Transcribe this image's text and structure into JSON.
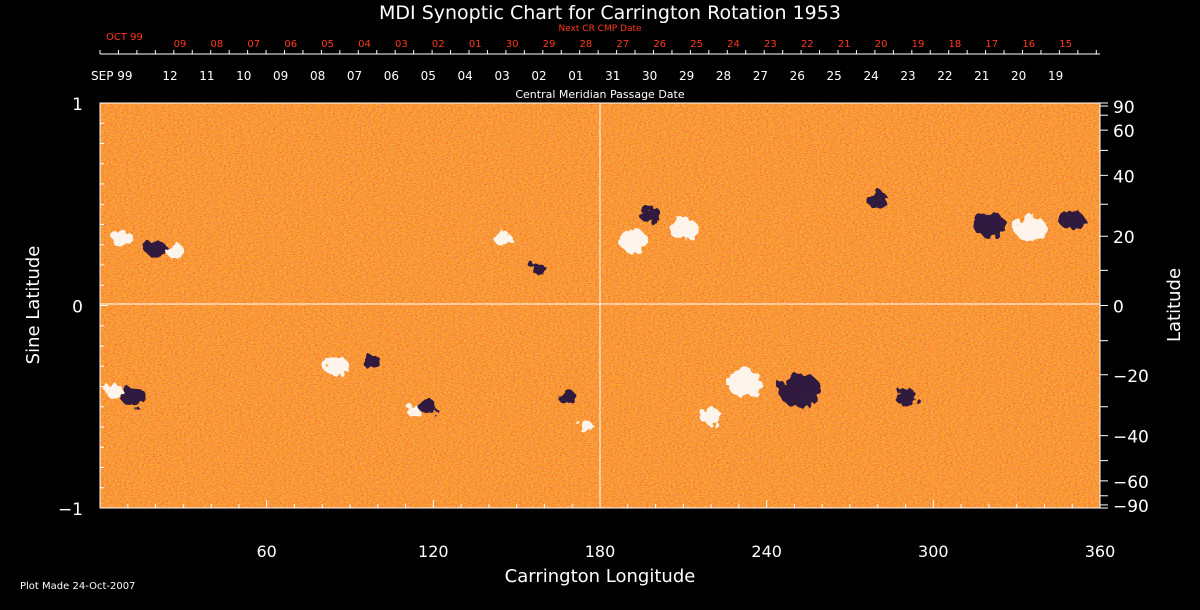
{
  "chart_data": {
    "type": "heatmap",
    "title": "MDI Synoptic Chart for Carrington Rotation 1953",
    "xlabel": "Carrington Longitude",
    "ylabel_left": "Sine Latitude",
    "ylabel_right": "Latitude",
    "xlim": [
      0,
      360
    ],
    "ylim_sine": [
      -1,
      1
    ],
    "x_ticks": [
      60,
      120,
      180,
      240,
      300,
      360
    ],
    "y_left_ticks": [
      {
        "v": 1,
        "label": "1"
      },
      {
        "v": 0,
        "label": "0"
      },
      {
        "v": -1,
        "label": "−1"
      }
    ],
    "y_right_ticks": [
      {
        "deg": 90,
        "label": "90"
      },
      {
        "deg": 60,
        "label": "60"
      },
      {
        "deg": 40,
        "label": "40"
      },
      {
        "deg": 20,
        "label": "20"
      },
      {
        "deg": 0,
        "label": "0"
      },
      {
        "deg": -20,
        "label": "−20"
      },
      {
        "deg": -40,
        "label": "−40"
      },
      {
        "deg": -60,
        "label": "−60"
      },
      {
        "deg": -90,
        "label": "−90"
      }
    ],
    "top_axis_label": "Central Meridian Passage Date",
    "top_axis_month": "SEP 99",
    "top_axis_dates": [
      "12",
      "11",
      "10",
      "09",
      "08",
      "07",
      "06",
      "05",
      "04",
      "03",
      "02",
      "01",
      "31",
      "30",
      "29",
      "28",
      "27",
      "26",
      "25",
      "24",
      "23",
      "22",
      "21",
      "20",
      "19"
    ],
    "next_axis_label": "Next CR CMP Date",
    "next_axis_month": "OCT 99",
    "next_axis_dates": [
      "09",
      "08",
      "07",
      "06",
      "05",
      "04",
      "03",
      "02",
      "01",
      "30",
      "29",
      "28",
      "27",
      "26",
      "25",
      "24",
      "23",
      "22",
      "21",
      "20",
      "19",
      "18",
      "17",
      "16",
      "15"
    ],
    "footer": "Plot Made 24-Oct-2007",
    "colors": {
      "background": "#000000",
      "field_mid": "#e8561a",
      "positive": "#ffffff",
      "negative": "#1a1040",
      "next_axis": "#ff3a1a"
    },
    "features": [
      {
        "polarity": "positive",
        "lon": 8,
        "lat_sine": 0.33,
        "size": 0.6
      },
      {
        "polarity": "negative",
        "lon": 20,
        "lat_sine": 0.28,
        "size": 0.6
      },
      {
        "polarity": "positive",
        "lon": 27,
        "lat_sine": 0.27,
        "size": 0.5
      },
      {
        "polarity": "positive",
        "lon": 145,
        "lat_sine": 0.33,
        "size": 0.5
      },
      {
        "polarity": "negative",
        "lon": 158,
        "lat_sine": 0.18,
        "size": 0.4
      },
      {
        "polarity": "positive",
        "lon": 192,
        "lat_sine": 0.32,
        "size": 0.8
      },
      {
        "polarity": "positive",
        "lon": 210,
        "lat_sine": 0.38,
        "size": 0.8
      },
      {
        "polarity": "negative",
        "lon": 198,
        "lat_sine": 0.45,
        "size": 0.6
      },
      {
        "polarity": "negative",
        "lon": 280,
        "lat_sine": 0.52,
        "size": 0.6
      },
      {
        "polarity": "negative",
        "lon": 320,
        "lat_sine": 0.4,
        "size": 0.9
      },
      {
        "polarity": "positive",
        "lon": 335,
        "lat_sine": 0.38,
        "size": 0.9
      },
      {
        "polarity": "negative",
        "lon": 350,
        "lat_sine": 0.42,
        "size": 0.7
      },
      {
        "polarity": "positive",
        "lon": 5,
        "lat_sine": -0.42,
        "size": 0.5
      },
      {
        "polarity": "negative",
        "lon": 12,
        "lat_sine": -0.45,
        "size": 0.7
      },
      {
        "polarity": "positive",
        "lon": 85,
        "lat_sine": -0.3,
        "size": 0.7
      },
      {
        "polarity": "negative",
        "lon": 98,
        "lat_sine": -0.28,
        "size": 0.5
      },
      {
        "polarity": "positive",
        "lon": 113,
        "lat_sine": -0.52,
        "size": 0.4
      },
      {
        "polarity": "negative",
        "lon": 118,
        "lat_sine": -0.5,
        "size": 0.5
      },
      {
        "polarity": "negative",
        "lon": 168,
        "lat_sine": -0.45,
        "size": 0.5
      },
      {
        "polarity": "positive",
        "lon": 175,
        "lat_sine": -0.6,
        "size": 0.4
      },
      {
        "polarity": "positive",
        "lon": 232,
        "lat_sine": -0.38,
        "size": 1.0
      },
      {
        "polarity": "negative",
        "lon": 252,
        "lat_sine": -0.42,
        "size": 1.2
      },
      {
        "polarity": "positive",
        "lon": 220,
        "lat_sine": -0.55,
        "size": 0.6
      },
      {
        "polarity": "negative",
        "lon": 290,
        "lat_sine": -0.45,
        "size": 0.6
      }
    ]
  }
}
